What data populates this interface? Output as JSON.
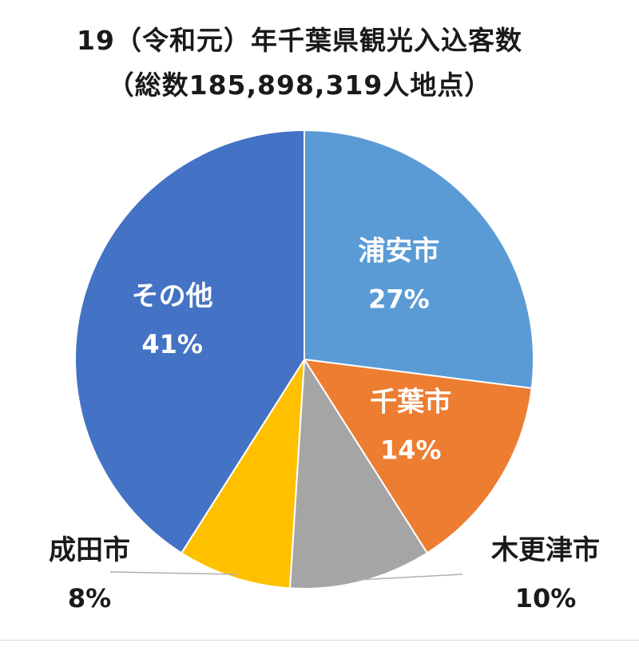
{
  "chart_data": {
    "type": "pie",
    "title": "19（令和元）年千葉県観光入込客数",
    "subtitle": "（総数185,898,319人地点）",
    "start_angle_deg": 0,
    "direction": "clockwise",
    "slices": [
      {
        "label": "浦安市",
        "value": 27,
        "value_label": "27%",
        "color": "#5b9bd5",
        "label_placement": "inside",
        "label_color": "#ffffff"
      },
      {
        "label": "千葉市",
        "value": 14,
        "value_label": "14%",
        "color": "#ed7d31",
        "label_placement": "inside",
        "label_color": "#ffffff"
      },
      {
        "label": "木更津市",
        "value": 10,
        "value_label": "10%",
        "color": "#a5a5a5",
        "label_placement": "outside-bottom-right",
        "label_color": "#1a1a1a"
      },
      {
        "label": "成田市",
        "value": 8,
        "value_label": "8%",
        "color": "#ffc000",
        "label_placement": "outside-bottom-left",
        "label_color": "#1a1a1a"
      },
      {
        "label": "その他",
        "value": 41,
        "value_label": "41%",
        "color": "#4472c4",
        "label_placement": "inside",
        "label_color": "#ffffff"
      }
    ]
  }
}
